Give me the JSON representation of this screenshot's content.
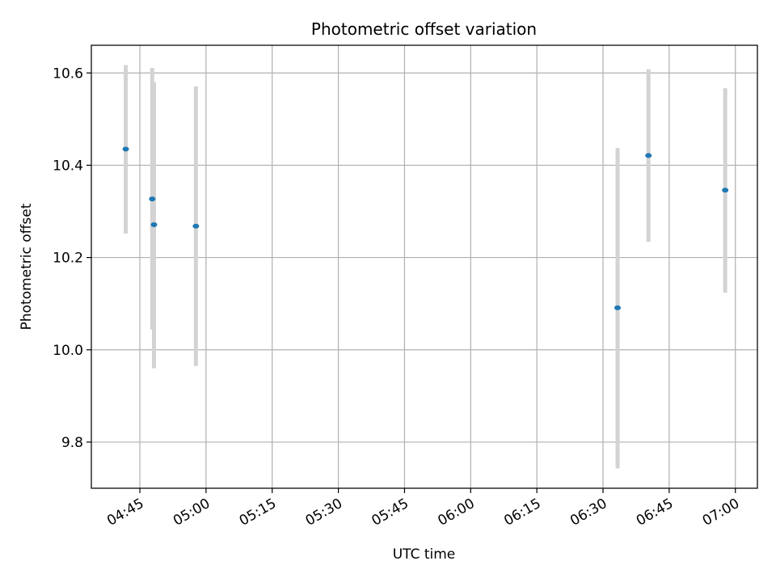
{
  "chart_data": {
    "type": "scatter",
    "title": "Photometric offset variation",
    "xlabel": "UTC time",
    "ylabel": "Photometric offset",
    "x_unit": "UTC time (HH:MM)",
    "xlim": [
      "04:34",
      "07:05"
    ],
    "ylim": [
      9.7,
      10.66
    ],
    "grid": true,
    "colors": {
      "marker": "#1f77b4",
      "errorbar": "#d3d3d3",
      "grid": "#b0b0b0"
    },
    "x_ticks": [
      "04:45",
      "05:00",
      "05:15",
      "05:30",
      "05:45",
      "06:00",
      "06:15",
      "06:30",
      "06:45",
      "07:00"
    ],
    "y_ticks": [
      9.8,
      10.0,
      10.2,
      10.4,
      10.6
    ],
    "y_tick_labels": [
      "9.8",
      "10.0",
      "10.2",
      "10.4",
      "10.6"
    ],
    "series": [
      {
        "points": [
          {
            "x": "04:41:48",
            "y": 10.435,
            "ylow": 10.252,
            "yhigh": 10.617
          },
          {
            "x": "04:47:48",
            "y": 10.327,
            "ylow": 10.044,
            "yhigh": 10.611
          },
          {
            "x": "04:48:12",
            "y": 10.271,
            "ylow": 9.96,
            "yhigh": 10.58
          },
          {
            "x": "04:57:42",
            "y": 10.268,
            "ylow": 9.965,
            "yhigh": 10.571
          },
          {
            "x": "06:33:18",
            "y": 10.091,
            "ylow": 9.743,
            "yhigh": 10.437
          },
          {
            "x": "06:40:18",
            "y": 10.421,
            "ylow": 10.234,
            "yhigh": 10.608
          },
          {
            "x": "06:57:42",
            "y": 10.346,
            "ylow": 10.124,
            "yhigh": 10.567
          }
        ]
      }
    ]
  }
}
